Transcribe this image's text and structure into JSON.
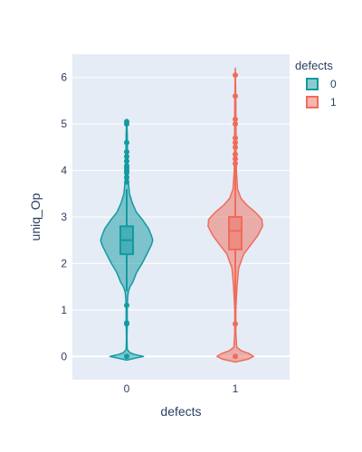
{
  "chart_data": {
    "type": "violin",
    "title": "",
    "xlabel": "defects",
    "ylabel": "uniq_Op",
    "categories": [
      "0",
      "1"
    ],
    "ylim": [
      -0.5,
      6.5
    ],
    "yticks": [
      0,
      1,
      2,
      3,
      4,
      5,
      6
    ],
    "legend": {
      "title": "defects",
      "position": "top-right"
    },
    "series": [
      {
        "name": "0",
        "color": "#139aa1",
        "fill": "rgba(19,154,161,0.5)",
        "box": {
          "q1": 2.2,
          "median": 2.5,
          "q3": 2.8,
          "whisker_low": 1.4,
          "whisker_high": 3.6
        },
        "density": [
          [
            -0.08,
            0.0
          ],
          [
            -0.04,
            0.3
          ],
          [
            0.0,
            0.6
          ],
          [
            0.04,
            0.3
          ],
          [
            0.08,
            0.12
          ],
          [
            0.15,
            0.02
          ],
          [
            0.4,
            0.01
          ],
          [
            0.7,
            0.02
          ],
          [
            1.1,
            0.02
          ],
          [
            1.3,
            0.04
          ],
          [
            1.4,
            0.06
          ],
          [
            1.5,
            0.12
          ],
          [
            1.6,
            0.22
          ],
          [
            1.8,
            0.35
          ],
          [
            2.0,
            0.55
          ],
          [
            2.2,
            0.72
          ],
          [
            2.4,
            0.88
          ],
          [
            2.5,
            0.93
          ],
          [
            2.6,
            0.88
          ],
          [
            2.75,
            0.78
          ],
          [
            2.95,
            0.55
          ],
          [
            3.1,
            0.35
          ],
          [
            3.3,
            0.2
          ],
          [
            3.5,
            0.1
          ],
          [
            3.8,
            0.05
          ],
          [
            4.3,
            0.03
          ],
          [
            4.8,
            0.02
          ],
          [
            5.1,
            0.0
          ]
        ],
        "outliers": [
          0.0,
          0.7,
          0.72,
          1.1,
          3.75,
          3.85,
          3.95,
          4.0,
          4.05,
          4.1,
          4.2,
          4.3,
          4.4,
          4.6,
          5.0,
          5.05
        ]
      },
      {
        "name": "1",
        "color": "#ef6c5b",
        "fill": "rgba(239,108,91,0.5)",
        "box": {
          "q1": 2.3,
          "median": 2.7,
          "q3": 3.0,
          "whisker_low": 1.1,
          "whisker_high": 4.1
        },
        "density": [
          [
            -0.12,
            0.0
          ],
          [
            -0.06,
            0.45
          ],
          [
            0.0,
            0.65
          ],
          [
            0.06,
            0.5
          ],
          [
            0.12,
            0.22
          ],
          [
            0.2,
            0.05
          ],
          [
            0.5,
            0.02
          ],
          [
            1.0,
            0.02
          ],
          [
            1.5,
            0.06
          ],
          [
            1.9,
            0.12
          ],
          [
            2.2,
            0.3
          ],
          [
            2.4,
            0.55
          ],
          [
            2.6,
            0.8
          ],
          [
            2.8,
            0.97
          ],
          [
            2.95,
            0.95
          ],
          [
            3.1,
            0.72
          ],
          [
            3.25,
            0.42
          ],
          [
            3.4,
            0.2
          ],
          [
            3.6,
            0.08
          ],
          [
            4.0,
            0.04
          ],
          [
            4.6,
            0.03
          ],
          [
            5.5,
            0.02
          ],
          [
            6.2,
            0.0
          ]
        ],
        "outliers": [
          0.0,
          0.7,
          4.15,
          4.25,
          4.35,
          4.5,
          4.6,
          4.7,
          5.0,
          5.1,
          5.6,
          6.05
        ]
      }
    ]
  }
}
